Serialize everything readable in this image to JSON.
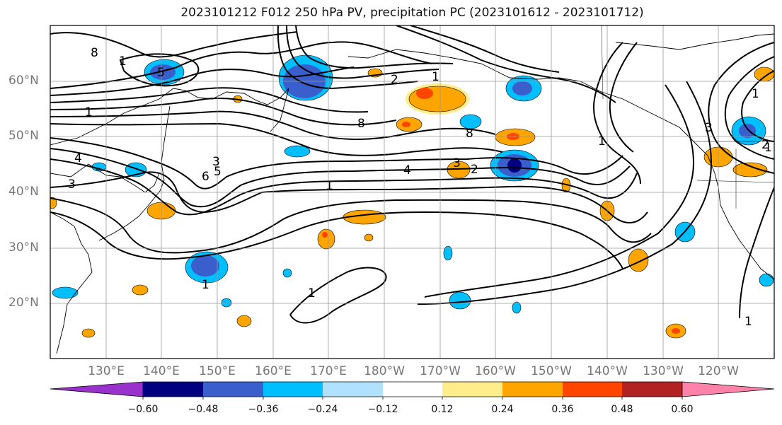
{
  "title": "2023101212 F012 250 hPa PV, precipitation PC (2023101612 - 2023101712)",
  "map": {
    "lat_labels": [
      "60°N",
      "50°N",
      "40°N",
      "30°N",
      "20°N"
    ],
    "lon_labels": [
      "130°E",
      "140°E",
      "150°E",
      "160°E",
      "170°E",
      "180°W",
      "170°W",
      "160°W",
      "150°W",
      "140°W",
      "130°W",
      "120°W"
    ],
    "contour_labels": [
      "8",
      "1",
      "5",
      "1",
      "2",
      "1",
      "1",
      "4",
      "3",
      "3",
      "6",
      "5",
      "8",
      "2",
      "1",
      "3",
      "2",
      "1",
      "4",
      "1",
      "1",
      "8",
      "1",
      "3",
      "1"
    ]
  },
  "colorbar": {
    "labels": [
      "−0.60",
      "−0.48",
      "−0.36",
      "−0.24",
      "−0.12",
      "0.12",
      "0.24",
      "0.36",
      "0.48",
      "0.60"
    ],
    "colors": [
      "#9932cc",
      "#000080",
      "#3a5fcd",
      "#00bfff",
      "#b0e2ff",
      "#ffffff",
      "#ffec8b",
      "#ffa500",
      "#ff4500",
      "#b22222",
      "#ff82ab"
    ]
  }
}
